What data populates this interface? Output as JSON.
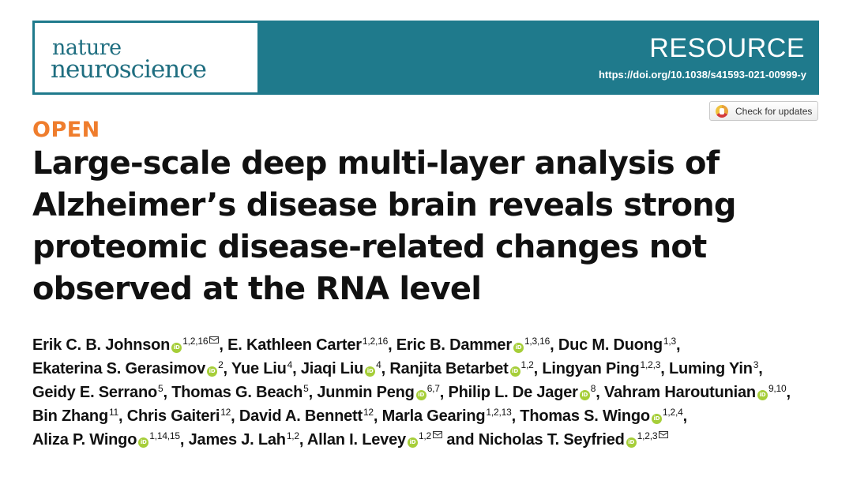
{
  "journal": {
    "name_line1": "nature",
    "name_line2": "neuroscience",
    "article_type": "RESOURCE",
    "doi": "https://doi.org/10.1038/s41593-021-00999-y"
  },
  "check_updates": {
    "label": "Check for updates"
  },
  "open_access_label": "OPEN",
  "title": "Large-scale deep multi-layer analysis of Alzheimer’s disease brain reveals strong proteomic disease-related changes not observed at the RNA level",
  "orcid_icon_text": "iD",
  "authors": [
    {
      "name": "Erik C. B. Johnson",
      "orcid": true,
      "aff": "1,2,16",
      "email": true,
      "sep": ", "
    },
    {
      "name": "E. Kathleen Carter",
      "orcid": false,
      "aff": "1,2,16",
      "email": false,
      "sep": ", "
    },
    {
      "name": "Eric B. Dammer",
      "orcid": true,
      "aff": "1,3,16",
      "email": false,
      "sep": ", "
    },
    {
      "name": "Duc M. Duong",
      "orcid": false,
      "aff": "1,3",
      "email": false,
      "sep": ", "
    },
    {
      "name": "Ekaterina S. Gerasimov",
      "orcid": true,
      "aff": "2",
      "email": false,
      "sep": ", "
    },
    {
      "name": "Yue Liu",
      "orcid": false,
      "aff": "4",
      "email": false,
      "sep": ", "
    },
    {
      "name": "Jiaqi Liu",
      "orcid": true,
      "aff": "4",
      "email": false,
      "sep": ", "
    },
    {
      "name": "Ranjita Betarbet",
      "orcid": true,
      "aff": "1,2",
      "email": false,
      "sep": ", "
    },
    {
      "name": "Lingyan Ping",
      "orcid": false,
      "aff": "1,2,3",
      "email": false,
      "sep": ", "
    },
    {
      "name": "Luming Yin",
      "orcid": false,
      "aff": "3",
      "email": false,
      "sep": ", "
    },
    {
      "name": "Geidy E. Serrano",
      "orcid": false,
      "aff": "5",
      "email": false,
      "sep": ", "
    },
    {
      "name": "Thomas G. Beach",
      "orcid": false,
      "aff": "5",
      "email": false,
      "sep": ", "
    },
    {
      "name": "Junmin Peng",
      "orcid": true,
      "aff": "6,7",
      "email": false,
      "sep": ", "
    },
    {
      "name": "Philip L. De Jager",
      "orcid": true,
      "aff": "8",
      "email": false,
      "sep": ", "
    },
    {
      "name": "Vahram Haroutunian",
      "orcid": true,
      "aff": "9,10",
      "email": false,
      "sep": ", "
    },
    {
      "name": "Bin Zhang",
      "orcid": false,
      "aff": "11",
      "email": false,
      "sep": ", "
    },
    {
      "name": "Chris Gaiteri",
      "orcid": false,
      "aff": "12",
      "email": false,
      "sep": ", "
    },
    {
      "name": "David A. Bennett",
      "orcid": false,
      "aff": "12",
      "email": false,
      "sep": ", "
    },
    {
      "name": "Marla Gearing",
      "orcid": false,
      "aff": "1,2,13",
      "email": false,
      "sep": ", "
    },
    {
      "name": "Thomas S. Wingo",
      "orcid": true,
      "aff": "1,2,4",
      "email": false,
      "sep": ", "
    },
    {
      "name": "Aliza P. Wingo",
      "orcid": true,
      "aff": "1,14,15",
      "email": false,
      "sep": ", "
    },
    {
      "name": "James J. Lah",
      "orcid": false,
      "aff": "1,2",
      "email": false,
      "sep": ", "
    },
    {
      "name": "Allan I. Levey",
      "orcid": true,
      "aff": "1,2",
      "email": true,
      "sep": " and "
    },
    {
      "name": "Nicholas T. Seyfried",
      "orcid": true,
      "aff": "1,2,3",
      "email": true,
      "sep": ""
    }
  ]
}
